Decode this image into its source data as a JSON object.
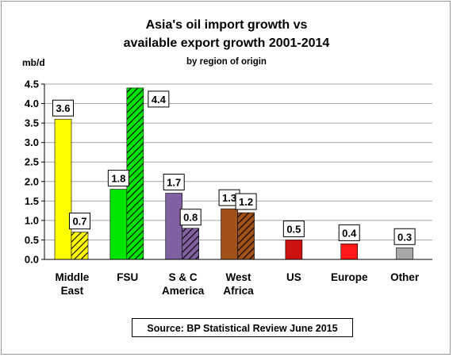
{
  "chart_data": {
    "type": "bar",
    "title_line1": "Asia's oil import growth vs",
    "title_line2": "available export growth 2001-2014",
    "subtitle": "by region of origin",
    "ylabel": "mb/d",
    "ylim": [
      0,
      4.5
    ],
    "yticks": [
      "0.0",
      "0.5",
      "1.0",
      "1.5",
      "2.0",
      "2.5",
      "3.0",
      "3.5",
      "4.0",
      "4.5"
    ],
    "grid": true,
    "categories": [
      [
        "Middle",
        "East"
      ],
      [
        "FSU"
      ],
      [
        "S & C",
        "America"
      ],
      [
        "West",
        "Africa"
      ],
      [
        "US"
      ],
      [
        "Europe"
      ],
      [
        "Other"
      ]
    ],
    "series": [
      {
        "values": [
          3.6,
          1.8,
          1.7,
          1.3,
          0.5,
          0.4,
          0.3
        ],
        "labels": [
          "3.6",
          "1.8",
          "1.7",
          "1.3",
          "0.5",
          "0.4",
          "0.3"
        ],
        "pattern": "solid"
      },
      {
        "values": [
          0.7,
          4.4,
          0.8,
          1.2,
          null,
          null,
          null
        ],
        "labels": [
          "0.7",
          "4.4",
          "0.8",
          "1.2",
          null,
          null,
          null
        ],
        "pattern": "hatched"
      }
    ],
    "colors": [
      "#ffff00",
      "#00e600",
      "#7f60a0",
      "#a0521a",
      "#cc1111",
      "#ff1a1a",
      "#a8a8a8"
    ],
    "source": "Source: BP Statistical Review June 2015"
  }
}
